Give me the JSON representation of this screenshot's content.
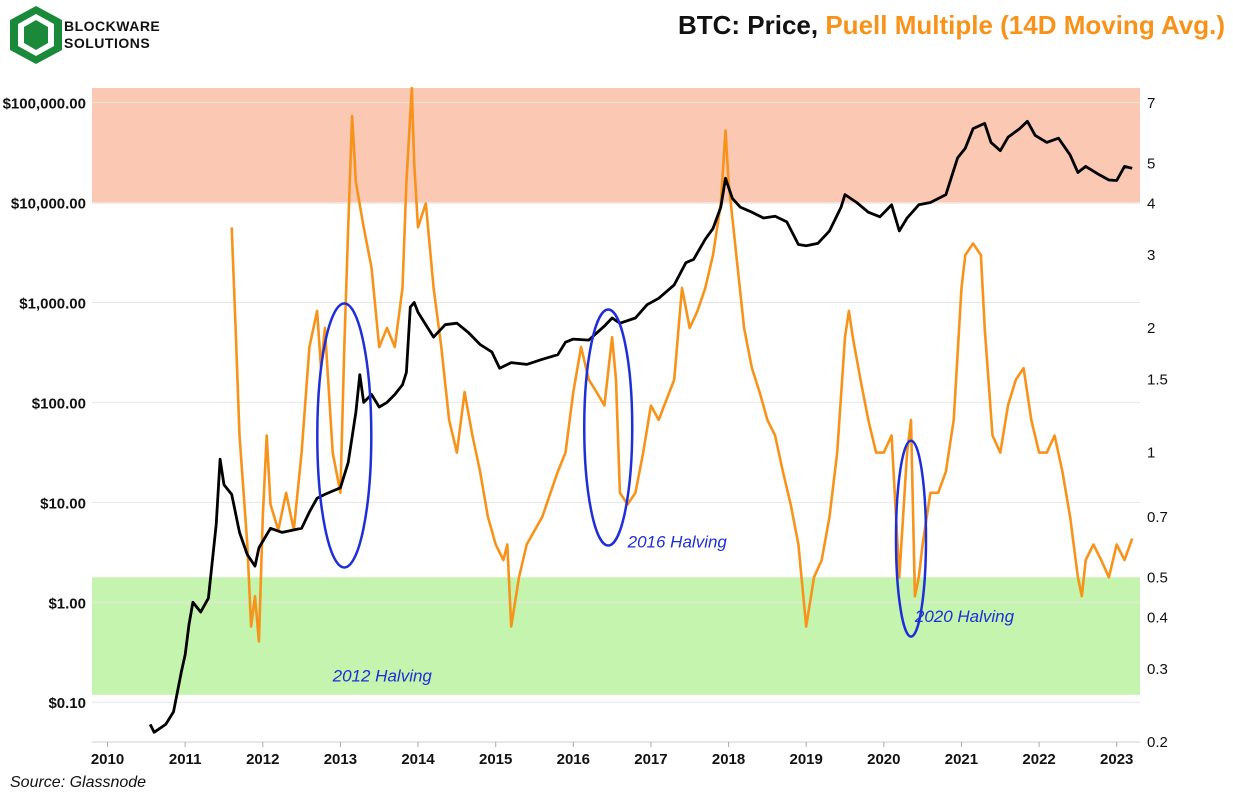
{
  "brand": {
    "line1": "BLOCKWARE",
    "line2": "SOLUTIONS"
  },
  "title": {
    "part1": "BTC: Price,",
    "part2": "Puell Multiple (14D Moving Avg.)"
  },
  "source": "Source: Glassnode",
  "colors": {
    "price": "#000000",
    "puell": "#f7931a",
    "red_zone": "#fbc8b3",
    "green_zone": "#c4f4ad",
    "halving": "#1f2fd8"
  },
  "chart_data": {
    "type": "line",
    "title": "BTC: Price, Puell Multiple (14D Moving Avg.)",
    "x_range": [
      2009.8,
      2023.3
    ],
    "x_ticks": [
      "2010",
      "2011",
      "2012",
      "2013",
      "2014",
      "2015",
      "2016",
      "2017",
      "2018",
      "2019",
      "2020",
      "2021",
      "2022",
      "2023"
    ],
    "left_axis": {
      "scale": "log",
      "range": [
        0.04,
        140000
      ],
      "ticks": [
        {
          "v": 0.1,
          "label": "$0.10"
        },
        {
          "v": 1,
          "label": "$1.00"
        },
        {
          "v": 10,
          "label": "$10.00"
        },
        {
          "v": 100,
          "label": "$100.00"
        },
        {
          "v": 1000,
          "label": "$1,000.00"
        },
        {
          "v": 10000,
          "label": "$10,000.00"
        },
        {
          "v": 100000,
          "label": "$100,000.00"
        }
      ]
    },
    "right_axis": {
      "scale": "log",
      "range": [
        0.2,
        7.6
      ],
      "ticks": [
        {
          "v": 0.2,
          "label": "0.2"
        },
        {
          "v": 0.3,
          "label": "0.3"
        },
        {
          "v": 0.4,
          "label": "0.4"
        },
        {
          "v": 0.5,
          "label": "0.5"
        },
        {
          "v": 0.7,
          "label": "0.7"
        },
        {
          "v": 1,
          "label": "1"
        },
        {
          "v": 1.5,
          "label": "1.5"
        },
        {
          "v": 2,
          "label": "2"
        },
        {
          "v": 3,
          "label": "3"
        },
        {
          "v": 4,
          "label": "4"
        },
        {
          "v": 5,
          "label": "5"
        },
        {
          "v": 7,
          "label": "7"
        }
      ]
    },
    "zones": [
      {
        "name": "overheated",
        "from": 4,
        "to": 7.6
      },
      {
        "name": "undervalued",
        "from": 0.26,
        "to": 0.5
      }
    ],
    "series": [
      {
        "name": "BTC Price (USD)",
        "axis": "left",
        "points": [
          [
            2010.55,
            0.06
          ],
          [
            2010.6,
            0.05
          ],
          [
            2010.75,
            0.06
          ],
          [
            2010.85,
            0.08
          ],
          [
            2010.95,
            0.2
          ],
          [
            2011.0,
            0.3
          ],
          [
            2011.05,
            0.6
          ],
          [
            2011.1,
            1.0
          ],
          [
            2011.2,
            0.8
          ],
          [
            2011.3,
            1.1
          ],
          [
            2011.4,
            6
          ],
          [
            2011.45,
            27
          ],
          [
            2011.5,
            15
          ],
          [
            2011.6,
            12
          ],
          [
            2011.7,
            5
          ],
          [
            2011.8,
            3
          ],
          [
            2011.9,
            2.3
          ],
          [
            2011.95,
            3.5
          ],
          [
            2012.1,
            5.5
          ],
          [
            2012.25,
            5
          ],
          [
            2012.5,
            5.5
          ],
          [
            2012.6,
            8
          ],
          [
            2012.7,
            11
          ],
          [
            2012.8,
            12
          ],
          [
            2012.9,
            13
          ],
          [
            2013.0,
            14
          ],
          [
            2013.1,
            25
          ],
          [
            2013.2,
            80
          ],
          [
            2013.25,
            190
          ],
          [
            2013.3,
            100
          ],
          [
            2013.4,
            120
          ],
          [
            2013.5,
            90
          ],
          [
            2013.6,
            100
          ],
          [
            2013.7,
            120
          ],
          [
            2013.8,
            150
          ],
          [
            2013.85,
            200
          ],
          [
            2013.9,
            900
          ],
          [
            2013.95,
            1000
          ],
          [
            2014.0,
            800
          ],
          [
            2014.1,
            600
          ],
          [
            2014.2,
            450
          ],
          [
            2014.35,
            600
          ],
          [
            2014.5,
            620
          ],
          [
            2014.65,
            500
          ],
          [
            2014.8,
            380
          ],
          [
            2014.95,
            320
          ],
          [
            2015.05,
            220
          ],
          [
            2015.2,
            250
          ],
          [
            2015.4,
            240
          ],
          [
            2015.6,
            270
          ],
          [
            2015.8,
            300
          ],
          [
            2015.9,
            400
          ],
          [
            2016.0,
            430
          ],
          [
            2016.2,
            420
          ],
          [
            2016.4,
            580
          ],
          [
            2016.5,
            700
          ],
          [
            2016.6,
            620
          ],
          [
            2016.8,
            700
          ],
          [
            2016.95,
            950
          ],
          [
            2017.1,
            1100
          ],
          [
            2017.3,
            1500
          ],
          [
            2017.45,
            2500
          ],
          [
            2017.55,
            2700
          ],
          [
            2017.7,
            4300
          ],
          [
            2017.8,
            5500
          ],
          [
            2017.9,
            9000
          ],
          [
            2017.96,
            17500
          ],
          [
            2018.05,
            11000
          ],
          [
            2018.15,
            9000
          ],
          [
            2018.3,
            8000
          ],
          [
            2018.45,
            7000
          ],
          [
            2018.6,
            7300
          ],
          [
            2018.75,
            6400
          ],
          [
            2018.9,
            3800
          ],
          [
            2019.0,
            3700
          ],
          [
            2019.15,
            3900
          ],
          [
            2019.3,
            5200
          ],
          [
            2019.45,
            9000
          ],
          [
            2019.5,
            12000
          ],
          [
            2019.65,
            10000
          ],
          [
            2019.8,
            8000
          ],
          [
            2019.95,
            7200
          ],
          [
            2020.1,
            9500
          ],
          [
            2020.2,
            5200
          ],
          [
            2020.3,
            7000
          ],
          [
            2020.45,
            9500
          ],
          [
            2020.6,
            10000
          ],
          [
            2020.8,
            12000
          ],
          [
            2020.95,
            28000
          ],
          [
            2021.05,
            35000
          ],
          [
            2021.15,
            55000
          ],
          [
            2021.3,
            62000
          ],
          [
            2021.38,
            40000
          ],
          [
            2021.5,
            33000
          ],
          [
            2021.6,
            45000
          ],
          [
            2021.75,
            55000
          ],
          [
            2021.85,
            65000
          ],
          [
            2021.95,
            47000
          ],
          [
            2022.1,
            40000
          ],
          [
            2022.25,
            44000
          ],
          [
            2022.4,
            30000
          ],
          [
            2022.5,
            20000
          ],
          [
            2022.6,
            23000
          ],
          [
            2022.75,
            19500
          ],
          [
            2022.9,
            16800
          ],
          [
            2023.0,
            16600
          ],
          [
            2023.1,
            23000
          ],
          [
            2023.2,
            22000
          ]
        ]
      },
      {
        "name": "Puell Multiple (14D MA)",
        "axis": "right",
        "points": [
          [
            2011.6,
            3.5
          ],
          [
            2011.65,
            2.0
          ],
          [
            2011.7,
            1.1
          ],
          [
            2011.8,
            0.6
          ],
          [
            2011.85,
            0.38
          ],
          [
            2011.9,
            0.45
          ],
          [
            2011.95,
            0.35
          ],
          [
            2012.0,
            0.7
          ],
          [
            2012.05,
            1.1
          ],
          [
            2012.1,
            0.75
          ],
          [
            2012.2,
            0.65
          ],
          [
            2012.3,
            0.8
          ],
          [
            2012.4,
            0.65
          ],
          [
            2012.5,
            1.0
          ],
          [
            2012.6,
            1.8
          ],
          [
            2012.7,
            2.2
          ],
          [
            2012.75,
            1.6
          ],
          [
            2012.8,
            2.0
          ],
          [
            2012.9,
            1.0
          ],
          [
            2013.0,
            0.8
          ],
          [
            2013.05,
            1.8
          ],
          [
            2013.1,
            3.5
          ],
          [
            2013.15,
            6.5
          ],
          [
            2013.2,
            4.5
          ],
          [
            2013.3,
            3.5
          ],
          [
            2013.4,
            2.8
          ],
          [
            2013.5,
            1.8
          ],
          [
            2013.6,
            2.0
          ],
          [
            2013.7,
            1.8
          ],
          [
            2013.8,
            2.5
          ],
          [
            2013.85,
            4.5
          ],
          [
            2013.92,
            7.6
          ],
          [
            2013.95,
            5.0
          ],
          [
            2014.0,
            3.5
          ],
          [
            2014.1,
            4.0
          ],
          [
            2014.2,
            2.5
          ],
          [
            2014.3,
            1.8
          ],
          [
            2014.4,
            1.2
          ],
          [
            2014.5,
            1.0
          ],
          [
            2014.6,
            1.4
          ],
          [
            2014.7,
            1.1
          ],
          [
            2014.8,
            0.9
          ],
          [
            2014.9,
            0.7
          ],
          [
            2015.0,
            0.6
          ],
          [
            2015.1,
            0.55
          ],
          [
            2015.15,
            0.6
          ],
          [
            2015.2,
            0.38
          ],
          [
            2015.3,
            0.5
          ],
          [
            2015.4,
            0.6
          ],
          [
            2015.6,
            0.7
          ],
          [
            2015.8,
            0.9
          ],
          [
            2015.9,
            1.0
          ],
          [
            2016.0,
            1.4
          ],
          [
            2016.1,
            1.8
          ],
          [
            2016.2,
            1.5
          ],
          [
            2016.3,
            1.4
          ],
          [
            2016.4,
            1.3
          ],
          [
            2016.5,
            1.9
          ],
          [
            2016.55,
            1.5
          ],
          [
            2016.6,
            0.8
          ],
          [
            2016.7,
            0.75
          ],
          [
            2016.8,
            0.8
          ],
          [
            2016.9,
            1.0
          ],
          [
            2017.0,
            1.3
          ],
          [
            2017.1,
            1.2
          ],
          [
            2017.3,
            1.5
          ],
          [
            2017.4,
            2.5
          ],
          [
            2017.5,
            2.0
          ],
          [
            2017.6,
            2.2
          ],
          [
            2017.7,
            2.5
          ],
          [
            2017.8,
            3.0
          ],
          [
            2017.9,
            4.0
          ],
          [
            2017.96,
            6.0
          ],
          [
            2018.0,
            4.5
          ],
          [
            2018.1,
            3.0
          ],
          [
            2018.2,
            2.0
          ],
          [
            2018.3,
            1.6
          ],
          [
            2018.4,
            1.4
          ],
          [
            2018.5,
            1.2
          ],
          [
            2018.6,
            1.1
          ],
          [
            2018.7,
            0.9
          ],
          [
            2018.8,
            0.75
          ],
          [
            2018.9,
            0.6
          ],
          [
            2019.0,
            0.38
          ],
          [
            2019.1,
            0.5
          ],
          [
            2019.2,
            0.55
          ],
          [
            2019.3,
            0.7
          ],
          [
            2019.4,
            1.0
          ],
          [
            2019.5,
            1.9
          ],
          [
            2019.55,
            2.2
          ],
          [
            2019.6,
            1.9
          ],
          [
            2019.7,
            1.5
          ],
          [
            2019.8,
            1.2
          ],
          [
            2019.9,
            1.0
          ],
          [
            2020.0,
            1.0
          ],
          [
            2020.1,
            1.1
          ],
          [
            2020.2,
            0.5
          ],
          [
            2020.3,
            1.0
          ],
          [
            2020.35,
            1.2
          ],
          [
            2020.4,
            0.45
          ],
          [
            2020.45,
            0.5
          ],
          [
            2020.5,
            0.6
          ],
          [
            2020.6,
            0.8
          ],
          [
            2020.7,
            0.8
          ],
          [
            2020.8,
            0.9
          ],
          [
            2020.9,
            1.2
          ],
          [
            2021.0,
            2.5
          ],
          [
            2021.05,
            3.0
          ],
          [
            2021.15,
            3.2
          ],
          [
            2021.25,
            3.0
          ],
          [
            2021.3,
            2.0
          ],
          [
            2021.4,
            1.1
          ],
          [
            2021.5,
            1.0
          ],
          [
            2021.6,
            1.3
          ],
          [
            2021.7,
            1.5
          ],
          [
            2021.8,
            1.6
          ],
          [
            2021.9,
            1.2
          ],
          [
            2022.0,
            1.0
          ],
          [
            2022.1,
            1.0
          ],
          [
            2022.2,
            1.1
          ],
          [
            2022.3,
            0.9
          ],
          [
            2022.4,
            0.7
          ],
          [
            2022.5,
            0.5
          ],
          [
            2022.55,
            0.45
          ],
          [
            2022.6,
            0.55
          ],
          [
            2022.7,
            0.6
          ],
          [
            2022.8,
            0.55
          ],
          [
            2022.9,
            0.5
          ],
          [
            2023.0,
            0.6
          ],
          [
            2023.1,
            0.55
          ],
          [
            2023.2,
            0.62
          ]
        ]
      }
    ],
    "annotations": [
      {
        "text": "2012 Halving",
        "x": 2012.9,
        "pv": 0.28
      },
      {
        "text": "2016 Halving",
        "x": 2016.7,
        "pv": 0.59
      },
      {
        "text": "2020 Halving",
        "x": 2020.4,
        "pv": 0.39
      }
    ]
  }
}
